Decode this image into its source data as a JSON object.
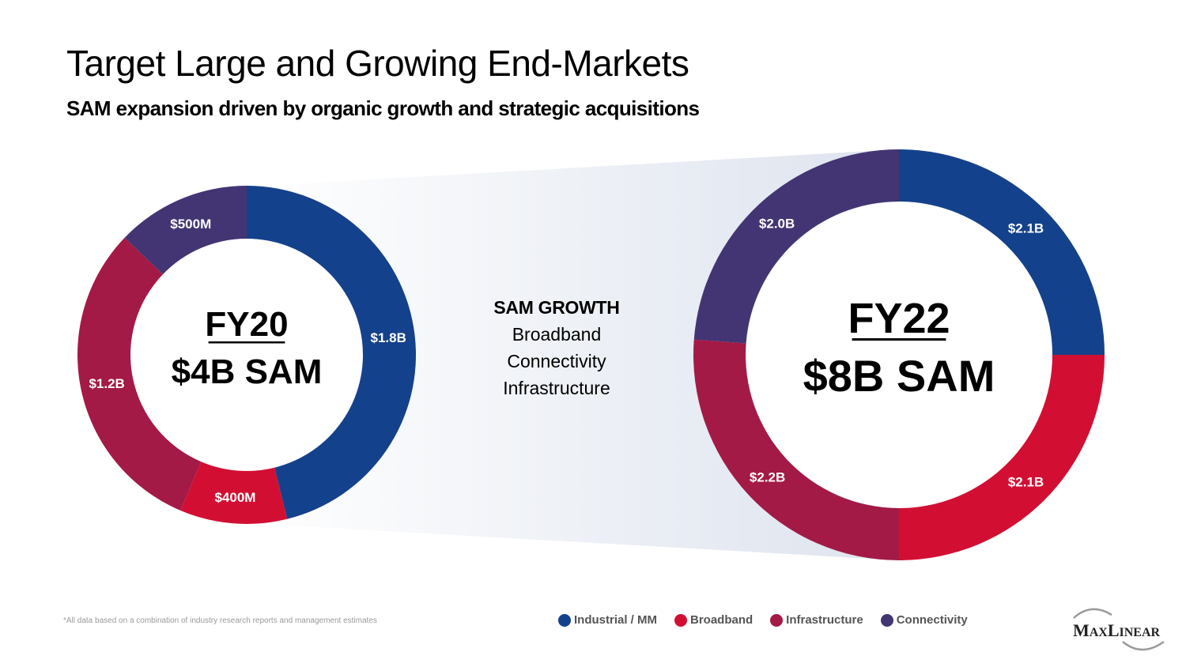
{
  "slide": {
    "title": "Target Large and Growing End-Markets",
    "subtitle": "SAM expansion driven by organic growth and strategic acquisitions",
    "footnote": "*All data based on a combination of industry research reports and management estimates",
    "logo_text": "MaxLinear"
  },
  "growth": {
    "heading": "SAM GROWTH",
    "items": [
      "Broadband",
      "Connectivity",
      "Infrastructure"
    ]
  },
  "colors": {
    "industrial": "#14418b",
    "broadband": "#d20f33",
    "infrastructure": "#a31a46",
    "connectivity": "#433573",
    "wedge_light": "#ffffff",
    "wedge_dark": "#dde3ee"
  },
  "legend": [
    {
      "label": "Industrial / MM",
      "color": "#14418b"
    },
    {
      "label": "Broadband",
      "color": "#d20f33"
    },
    {
      "label": "Infrastructure",
      "color": "#a31a46"
    },
    {
      "label": "Connectivity",
      "color": "#433573"
    }
  ],
  "chart_data": [
    {
      "type": "pie",
      "variant": "donut",
      "title": "FY20",
      "center_label": "$4B SAM",
      "categories": [
        "Industrial / MM",
        "Broadband",
        "Infrastructure",
        "Connectivity"
      ],
      "values": [
        1.8,
        0.4,
        1.2,
        0.5
      ],
      "unit": "$B",
      "data_labels": [
        "$1.8B",
        "$400M",
        "$1.2B",
        "$500M"
      ],
      "legend": "bottom-right"
    },
    {
      "type": "pie",
      "variant": "donut",
      "title": "FY22",
      "center_label": "$8B SAM",
      "categories": [
        "Industrial / MM",
        "Broadband",
        "Infrastructure",
        "Connectivity"
      ],
      "values": [
        2.1,
        2.1,
        2.2,
        2.0
      ],
      "unit": "$B",
      "data_labels": [
        "$2.1B",
        "$2.1B",
        "$2.2B",
        "$2.0B"
      ],
      "legend": "bottom-right"
    }
  ]
}
